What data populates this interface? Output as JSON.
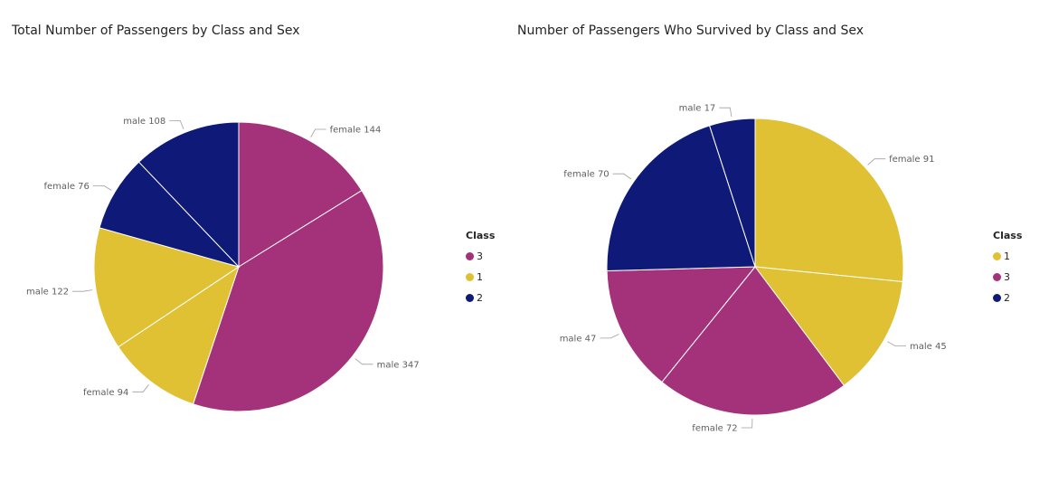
{
  "colors": {
    "class_1": "#DFC133",
    "class_2": "#0F1A78",
    "class_3": "#A4327A"
  },
  "chart_data": [
    {
      "type": "pie",
      "title": "Total Number of Passengers by Class and Sex",
      "legend": {
        "title": "Class",
        "placement": "right",
        "entries": [
          {
            "label": "3",
            "color": "#A4327A"
          },
          {
            "label": "1",
            "color": "#DFC133"
          },
          {
            "label": "2",
            "color": "#0F1A78"
          }
        ]
      },
      "slices": [
        {
          "label": "female 144",
          "class": "3",
          "sex": "female",
          "value": 144,
          "color": "#A4327A"
        },
        {
          "label": "male 347",
          "class": "3",
          "sex": "male",
          "value": 347,
          "color": "#A4327A"
        },
        {
          "label": "female 94",
          "class": "1",
          "sex": "female",
          "value": 94,
          "color": "#DFC133"
        },
        {
          "label": "male 122",
          "class": "1",
          "sex": "male",
          "value": 122,
          "color": "#DFC133"
        },
        {
          "label": "female 76",
          "class": "2",
          "sex": "female",
          "value": 76,
          "color": "#0F1A78"
        },
        {
          "label": "male 108",
          "class": "2",
          "sex": "male",
          "value": 108,
          "color": "#0F1A78"
        }
      ]
    },
    {
      "type": "pie",
      "title": "Number of Passengers Who Survived by Class and Sex",
      "legend": {
        "title": "Class",
        "placement": "right",
        "entries": [
          {
            "label": "1",
            "color": "#DFC133"
          },
          {
            "label": "3",
            "color": "#A4327A"
          },
          {
            "label": "2",
            "color": "#0F1A78"
          }
        ]
      },
      "slices": [
        {
          "label": "female 91",
          "class": "1",
          "sex": "female",
          "value": 91,
          "color": "#DFC133"
        },
        {
          "label": "male 45",
          "class": "1",
          "sex": "male",
          "value": 45,
          "color": "#DFC133"
        },
        {
          "label": "female 72",
          "class": "3",
          "sex": "female",
          "value": 72,
          "color": "#A4327A"
        },
        {
          "label": "male 47",
          "class": "3",
          "sex": "male",
          "value": 47,
          "color": "#A4327A"
        },
        {
          "label": "female 70",
          "class": "2",
          "sex": "female",
          "value": 70,
          "color": "#0F1A78"
        },
        {
          "label": "male 17",
          "class": "2",
          "sex": "male",
          "value": 17,
          "color": "#0F1A78"
        }
      ]
    }
  ]
}
